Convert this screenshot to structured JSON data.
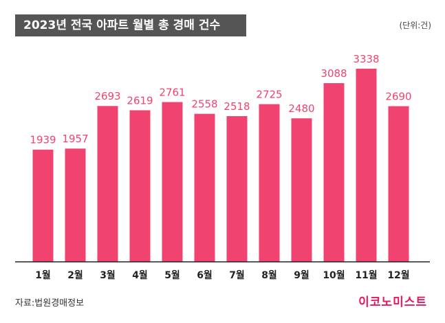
{
  "header": {
    "title": "2023년 전국 아파트 월별 총 경매 건수",
    "unit": "(단위:건)"
  },
  "footer": {
    "source": "자료:법원경매정보",
    "logo": "이코노미스트"
  },
  "colors": {
    "bar": "#f0436f",
    "label": "#f0436f",
    "title_bg": "#555555",
    "axis": "#222222"
  },
  "chart_data": {
    "type": "bar",
    "title": "2023년 전국 아파트 월별 총 경매 건수",
    "categories": [
      "1월",
      "2월",
      "3월",
      "4월",
      "5월",
      "6월",
      "7월",
      "8월",
      "9월",
      "10월",
      "11월",
      "12월"
    ],
    "values": [
      1939,
      1957,
      2693,
      2619,
      2761,
      2558,
      2518,
      2725,
      2480,
      3088,
      3338,
      2690
    ],
    "unit": "(단위:건)",
    "grid": false,
    "legend": "none"
  }
}
